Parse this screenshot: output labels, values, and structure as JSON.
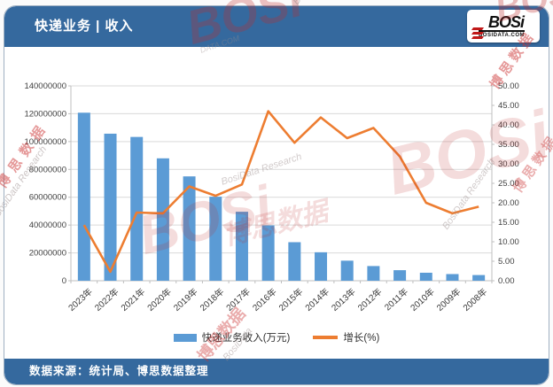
{
  "header": {
    "title": "快递业务 | 收入",
    "logo": {
      "brand": "BOSi",
      "domain": "BOSIDATA.COM"
    }
  },
  "footer": {
    "source": "数据来源：统计局、博思数据整理"
  },
  "legend": [
    {
      "label": "快递业务收入(万元)",
      "color": "#5B9BD5",
      "type": "bar"
    },
    {
      "label": "增长(%)",
      "color": "#ED7D31",
      "type": "line"
    }
  ],
  "watermarks": {
    "brand": "BOSi",
    "brand_cn": "博思数据",
    "research": "BosiData Research",
    "bosidata": "BosiData",
    "domain": "DATA.COM",
    "data_cn": "数据"
  },
  "colors": {
    "header_blue": "#35699E",
    "bar_blue": "#5B9BD5",
    "line_orange": "#ED7D31",
    "gridline": "#D9D9D9",
    "axis_line": "#BFBFBF",
    "axis_text": "#404040",
    "watermark_red": "#C02A2A"
  },
  "chart_data": {
    "type": "bar",
    "subtype": "bar+line combo, dual axis",
    "title": "快递业务 | 收入",
    "categories": [
      "2023年",
      "2022年",
      "2021年",
      "2020年",
      "2019年",
      "2018年",
      "2017年",
      "2016年",
      "2015年",
      "2014年",
      "2013年",
      "2012年",
      "2011年",
      "2010年",
      "2009年",
      "2008年"
    ],
    "series": [
      {
        "name": "快递业务收入(万元)",
        "type": "bar",
        "axis": "left",
        "color": "#5B9BD5",
        "values": [
          120740000,
          105667000,
          103323000,
          87954000,
          74978000,
          60384000,
          49571000,
          39744000,
          27696000,
          20454000,
          14417000,
          10553000,
          7580000,
          5746000,
          4790000,
          4084000
        ]
      },
      {
        "name": "增长(%)",
        "type": "line",
        "axis": "right",
        "color": "#ED7D31",
        "values": [
          14.3,
          2.3,
          17.5,
          17.3,
          24.2,
          21.8,
          24.7,
          43.5,
          35.4,
          41.9,
          36.6,
          39.2,
          31.9,
          20.0,
          17.3,
          19.0
        ]
      }
    ],
    "left_axis": {
      "min": 0,
      "max": 140000000,
      "step": 20000000,
      "tick_labels": [
        "0",
        "20000000",
        "40000000",
        "60000000",
        "80000000",
        "100000000",
        "120000000",
        "140000000"
      ]
    },
    "right_axis": {
      "min": 0,
      "max": 50,
      "step": 5,
      "tick_labels": [
        "0.00",
        "5.00",
        "10.00",
        "15.00",
        "20.00",
        "25.00",
        "30.00",
        "35.00",
        "40.00",
        "45.00",
        "50.00"
      ]
    },
    "grid": "horizontal",
    "legend_position": "bottom",
    "x_label_rotation": -45
  }
}
